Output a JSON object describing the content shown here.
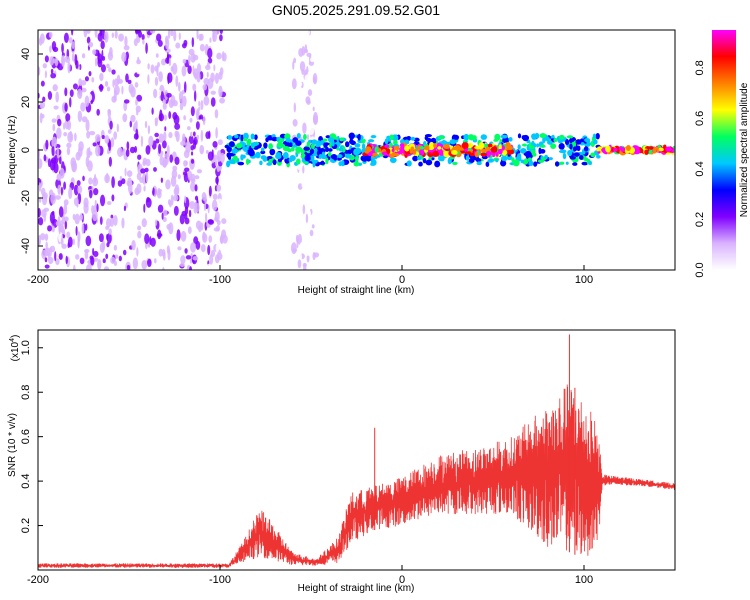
{
  "title": "GN05.2025.291.09.52.G01",
  "chart_data": [
    {
      "type": "heatmap",
      "name": "spectrogram",
      "xlabel": "Height of straight line (km)",
      "ylabel": "Frequency (Hz)",
      "xlim": [
        -200,
        150
      ],
      "ylim": [
        -50,
        50
      ],
      "xticks": [
        -200,
        -100,
        0,
        100
      ],
      "yticks": [
        -40,
        -20,
        0,
        20,
        40
      ],
      "colorbar": {
        "label": "Normalized spectral amplitude",
        "range": [
          0,
          0.95
        ],
        "ticks": [
          0.0,
          0.2,
          0.4,
          0.6,
          0.8
        ],
        "tick_labels": [
          "0.0",
          "0.2",
          "0.4",
          "0.6",
          "0.8"
        ],
        "colormap": [
          "#ffffff",
          "#d9b3ff",
          "#8000ff",
          "#0000ff",
          "#00c8ff",
          "#00ff60",
          "#ffff00",
          "#ff8000",
          "#ff0000",
          "#ff00ff"
        ]
      },
      "regions": [
        {
          "x_range": [
            -200,
            -97
          ],
          "freq_range": [
            -50,
            50
          ],
          "level": 0.12,
          "description": "broadband noise"
        },
        {
          "x_range": [
            -60,
            -47
          ],
          "freq_range": [
            -50,
            50
          ],
          "level": 0.05,
          "description": "faint vertical noise band"
        },
        {
          "x_range": [
            -97,
            108
          ],
          "freq_center": 0,
          "freq_halfwidth": 6,
          "level": 0.45
        },
        {
          "x_range": [
            -20,
            60
          ],
          "freq_center": 0,
          "freq_halfwidth": 2,
          "level": 0.85
        },
        {
          "x_range": [
            108,
            150
          ],
          "freq_center": 0,
          "freq_halfwidth": 1,
          "level": 0.9
        }
      ]
    },
    {
      "type": "line",
      "name": "snr",
      "xlabel": "Height of straight line (km)",
      "ylabel": "SNR (10 * v/v)",
      "yscale_label": "(x10",
      "yscale_exponent": "4",
      "yscale_suffix": ")",
      "xlim": [
        -200,
        150
      ],
      "ylim": [
        0,
        1.08
      ],
      "xticks": [
        -200,
        -100,
        0,
        100
      ],
      "yticks": [
        0.2,
        0.4,
        0.6,
        0.8,
        1.0
      ],
      "color": "#ee3333",
      "envelope": [
        {
          "x": -200,
          "lo": 0.01,
          "hi": 0.03
        },
        {
          "x": -95,
          "lo": 0.01,
          "hi": 0.03
        },
        {
          "x": -88,
          "lo": 0.03,
          "hi": 0.12
        },
        {
          "x": -78,
          "lo": 0.06,
          "hi": 0.28
        },
        {
          "x": -70,
          "lo": 0.04,
          "hi": 0.2
        },
        {
          "x": -60,
          "lo": 0.02,
          "hi": 0.08
        },
        {
          "x": -47,
          "lo": 0.02,
          "hi": 0.05
        },
        {
          "x": -35,
          "lo": 0.03,
          "hi": 0.15
        },
        {
          "x": -28,
          "lo": 0.12,
          "hi": 0.35
        },
        {
          "x": -15,
          "lo": 0.18,
          "hi": 0.38
        },
        {
          "x": 0,
          "lo": 0.2,
          "hi": 0.42
        },
        {
          "x": 20,
          "lo": 0.25,
          "hi": 0.52
        },
        {
          "x": 40,
          "lo": 0.25,
          "hi": 0.55
        },
        {
          "x": 60,
          "lo": 0.25,
          "hi": 0.6
        },
        {
          "x": 80,
          "lo": 0.1,
          "hi": 0.75
        },
        {
          "x": 92,
          "lo": 0.08,
          "hi": 0.85
        },
        {
          "x": 100,
          "lo": 0.05,
          "hi": 0.78
        },
        {
          "x": 108,
          "lo": 0.1,
          "hi": 0.65
        },
        {
          "x": 110,
          "lo": 0.38,
          "hi": 0.43
        },
        {
          "x": 130,
          "lo": 0.38,
          "hi": 0.41
        },
        {
          "x": 150,
          "lo": 0.36,
          "hi": 0.39
        }
      ],
      "spikes": [
        {
          "x": -15,
          "y": 0.64
        },
        {
          "x": 92,
          "y": 1.06
        },
        {
          "x": 95,
          "y": 0.82
        }
      ]
    }
  ]
}
